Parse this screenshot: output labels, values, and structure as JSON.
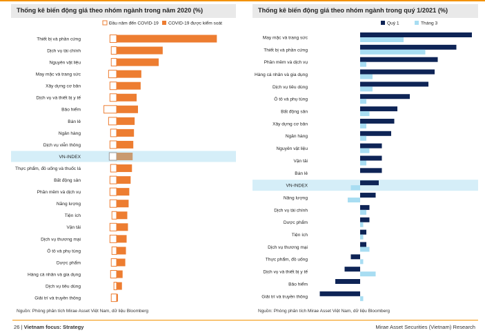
{
  "colors": {
    "orange": "#ED7D31",
    "vnindex_fill": "#C99A70",
    "navy": "#0E2456",
    "light_blue": "#A8DDF2",
    "highlight_band": "#D5EEF8",
    "accent_rule": "#F39200"
  },
  "footer": {
    "page": "26 | ",
    "section": "Vietnam focus: Strategy",
    "company": "Mirae Asset Securities (Vietnam) Research"
  },
  "chart_data": [
    {
      "type": "bar",
      "orientation": "horizontal",
      "title": "Thống kê biến động giá theo nhóm ngành trong năm 2020 (%)",
      "source": "Nguồn: Phòng phân tích Mirae Asset Việt Nam, dữ liệu Bloomberg",
      "legend": {
        "placement": "top-right",
        "entries": [
          "Đầu năm đến COVID-19",
          "COVID-19 được kiểm soát"
        ]
      },
      "highlight_category": "VN-INDEX",
      "categories": [
        "Thiết bị và phần cứng",
        "Dịch vụ tài chính",
        "Nguyên vật liệu",
        "May mặc và trang sức",
        "Xây dựng cơ bản",
        "Dịch vụ và thiết bị y tế",
        "Bảo hiểm",
        "Bán lẻ",
        "Ngân hàng",
        "Dịch vụ viễn thông",
        "VN-INDEX",
        "Thực phẩm, đồ uống và thuốc lá",
        "Bất động sản",
        "Phần mềm và dịch vụ",
        "Năng lượng",
        "Tiện ích",
        "Vận tải",
        "Dịch vụ thương mại",
        "Ô tô và phụ tùng",
        "Dược phẩm",
        "Hàng cá nhân và gia dụng",
        "Dịch vụ tiêu dùng",
        "Giải trí và truyền thông"
      ],
      "series": [
        {
          "name": "Đầu năm đến COVID-19",
          "style": "outline",
          "values": [
            -10,
            -8,
            -8,
            -12,
            -10,
            -10,
            -19,
            -12,
            -9,
            -10,
            -11,
            -9,
            -10,
            -10,
            -10,
            -7,
            -10,
            -10,
            -7,
            -8,
            -9,
            -4,
            -8
          ]
        },
        {
          "name": "COVID-19 được kiểm soát",
          "style": "solid",
          "values": [
            150,
            69,
            63,
            37,
            36,
            30,
            32,
            27,
            26,
            25,
            24,
            23,
            21,
            19,
            18,
            16,
            17,
            15,
            14,
            13,
            9,
            8,
            2
          ]
        }
      ],
      "xlim": [
        -25,
        160
      ]
    },
    {
      "type": "bar",
      "orientation": "horizontal",
      "title": "Thống kê biến động giá theo nhóm ngành trong quý 1/2021 (%)",
      "source": "Nguồn: Phòng phân tích Mirae Asset Việt Nam, dữ liệu Bloomberg",
      "legend": {
        "placement": "top-right",
        "entries": [
          "Quý 1",
          "Tháng 3"
        ]
      },
      "highlight_category": "VN-INDEX",
      "categories": [
        "May mặc và trang sức",
        "Thiết bị và phần cứng",
        "Phần mềm và dịch vụ",
        "Hàng cá nhân và gia dụng",
        "Dịch vụ tiêu dùng",
        "Ô tô và phụ tùng",
        "Bất động sản",
        "Xây dựng cơ bản",
        "Ngân hàng",
        "Nguyên vật liệu",
        "Vận tải",
        "Bán lẻ",
        "VN-INDEX",
        "Năng lượng",
        "Dịch vụ tài chính",
        "Dược phẩm",
        "Tiện ích",
        "Dịch vụ thương mại",
        "Thực phẩm, đồ uống",
        "Dịch vụ và thiết bị y tế",
        "Bảo hiểm",
        "Giải trí và truyền thông"
      ],
      "series": [
        {
          "name": "Quý 1",
          "values": [
            36,
            31,
            25,
            24,
            22,
            16,
            12,
            11,
            10,
            7,
            7,
            7,
            6,
            5,
            3,
            3,
            2,
            2,
            -3,
            -5,
            -8,
            -13
          ]
        },
        {
          "name": "Tháng 3",
          "values": [
            14,
            21,
            2,
            4,
            4,
            2,
            3,
            2,
            2,
            3,
            2,
            0,
            -3,
            -4,
            2,
            1,
            1,
            3,
            1,
            5,
            0,
            1
          ]
        }
      ],
      "xlim": [
        -18,
        40
      ]
    }
  ]
}
